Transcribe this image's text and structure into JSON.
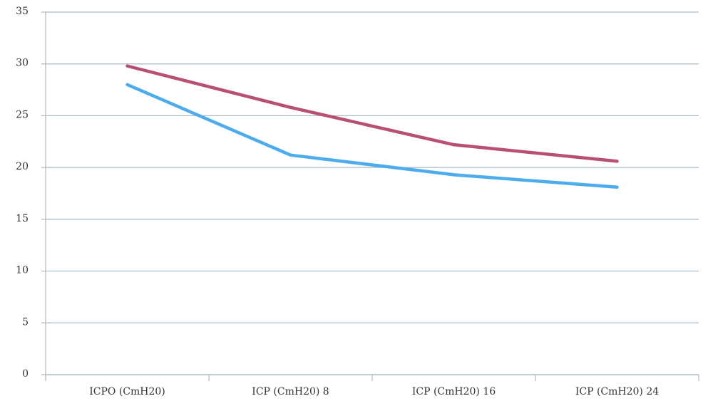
{
  "chart_data": {
    "type": "line",
    "categories": [
      "ICPO (CmH20)",
      "ICP (CmH20) 8",
      "ICP (CmH20) 16",
      "ICP (CmH20) 24"
    ],
    "series": [
      {
        "color": "#b94f71",
        "values": [
          29.8,
          25.8,
          22.2,
          20.6
        ]
      },
      {
        "color": "#4cacec",
        "values": [
          28,
          21.2,
          19.3,
          18.1
        ]
      }
    ],
    "ylim": [
      0,
      35
    ],
    "yticks": [
      0,
      5,
      10,
      15,
      20,
      25,
      30,
      35
    ],
    "grid": true
  }
}
